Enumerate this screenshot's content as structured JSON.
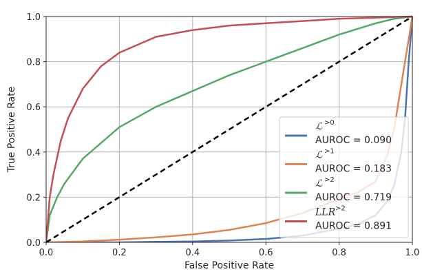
{
  "chart_data": {
    "type": "line",
    "xlabel": "False Positive Rate",
    "ylabel": "True Positive Rate",
    "xlim": [
      0,
      1
    ],
    "ylim": [
      0,
      1
    ],
    "xticks": [
      0.0,
      0.2,
      0.4,
      0.6,
      0.8,
      1.0
    ],
    "yticks": [
      0.0,
      0.2,
      0.4,
      0.6,
      0.8,
      1.0
    ],
    "xtick_labels": [
      "0.0",
      "0.2",
      "0.4",
      "0.6",
      "0.8",
      "1.0"
    ],
    "ytick_labels": [
      "0.0",
      "0.2",
      "0.4",
      "0.6",
      "0.8",
      "1.0"
    ],
    "grid": true,
    "legend_position": "bottom-right",
    "series": [
      {
        "name": "ℒ",
        "name_sup": ">0",
        "auroc_label": "AUROC = 0.090",
        "color": "#4c72b0",
        "x": [
          0,
          0.1,
          0.2,
          0.3,
          0.4,
          0.5,
          0.6,
          0.7,
          0.8,
          0.85,
          0.9,
          0.93,
          0.95,
          0.97,
          0.98,
          0.99,
          1.0
        ],
        "y": [
          0,
          0.0,
          0.0,
          0.002,
          0.004,
          0.008,
          0.015,
          0.03,
          0.06,
          0.08,
          0.12,
          0.18,
          0.25,
          0.4,
          0.55,
          0.8,
          1.0
        ]
      },
      {
        "name": "ℒ",
        "name_sup": ">1",
        "auroc_label": "AUROC = 0.183",
        "color": "#dd8452",
        "x": [
          0,
          0.1,
          0.2,
          0.3,
          0.4,
          0.5,
          0.6,
          0.7,
          0.75,
          0.8,
          0.85,
          0.9,
          0.93,
          0.95,
          0.97,
          1.0
        ],
        "y": [
          0,
          0.004,
          0.012,
          0.022,
          0.035,
          0.055,
          0.085,
          0.13,
          0.16,
          0.19,
          0.22,
          0.27,
          0.38,
          0.5,
          0.7,
          1.0
        ]
      },
      {
        "name": "ℒ",
        "name_sup": ">2",
        "auroc_label": "AUROC = 0.719",
        "color": "#55a868",
        "x": [
          0,
          0.01,
          0.03,
          0.05,
          0.1,
          0.15,
          0.2,
          0.3,
          0.4,
          0.5,
          0.6,
          0.7,
          0.8,
          0.9,
          0.95,
          1.0
        ],
        "y": [
          0,
          0.12,
          0.2,
          0.26,
          0.37,
          0.44,
          0.51,
          0.6,
          0.67,
          0.74,
          0.8,
          0.86,
          0.92,
          0.97,
          0.99,
          1.0
        ]
      },
      {
        "name": "LLR",
        "name_sup": ">2",
        "auroc_label": "AUROC = 0.891",
        "color": "#c44e52",
        "x": [
          0,
          0.01,
          0.02,
          0.04,
          0.06,
          0.1,
          0.15,
          0.2,
          0.3,
          0.4,
          0.5,
          0.6,
          0.7,
          0.8,
          0.9,
          1.0
        ],
        "y": [
          0,
          0.2,
          0.3,
          0.45,
          0.55,
          0.68,
          0.78,
          0.84,
          0.91,
          0.94,
          0.96,
          0.97,
          0.98,
          0.99,
          0.995,
          1.0
        ]
      }
    ],
    "reference_line": {
      "x": [
        0,
        1
      ],
      "y": [
        0,
        1
      ],
      "style": "dashed",
      "color": "#000000"
    }
  }
}
